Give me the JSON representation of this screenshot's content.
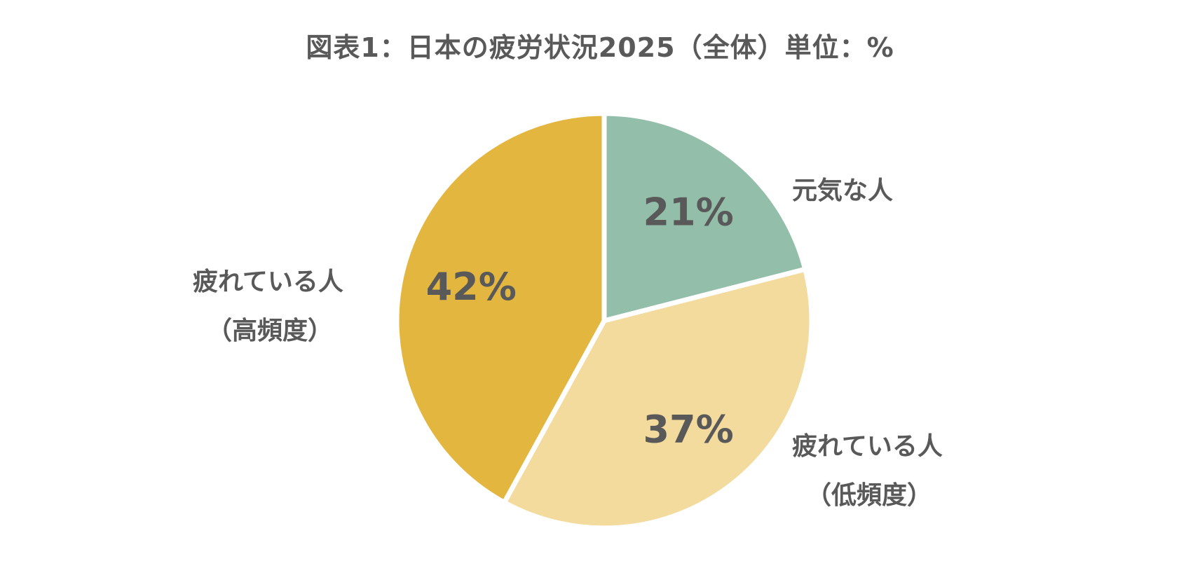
{
  "chart_data": {
    "type": "pie",
    "title": "図表1：日本の疲労状況2025（全体）単位：%",
    "slices": [
      {
        "label_lines": [
          "元気な人"
        ],
        "value": 21,
        "value_label": "21%",
        "color": "#93BFAA"
      },
      {
        "label_lines": [
          "疲れている人",
          "（低頻度）"
        ],
        "value": 37,
        "value_label": "37%",
        "color": "#F3DA9D"
      },
      {
        "label_lines": [
          "疲れている人",
          "（高頻度）"
        ],
        "value": 42,
        "value_label": "42%",
        "color": "#E3B63F"
      }
    ],
    "start_angle_deg": 0,
    "direction": "clockwise",
    "separator_color": "#FFFFFF"
  }
}
